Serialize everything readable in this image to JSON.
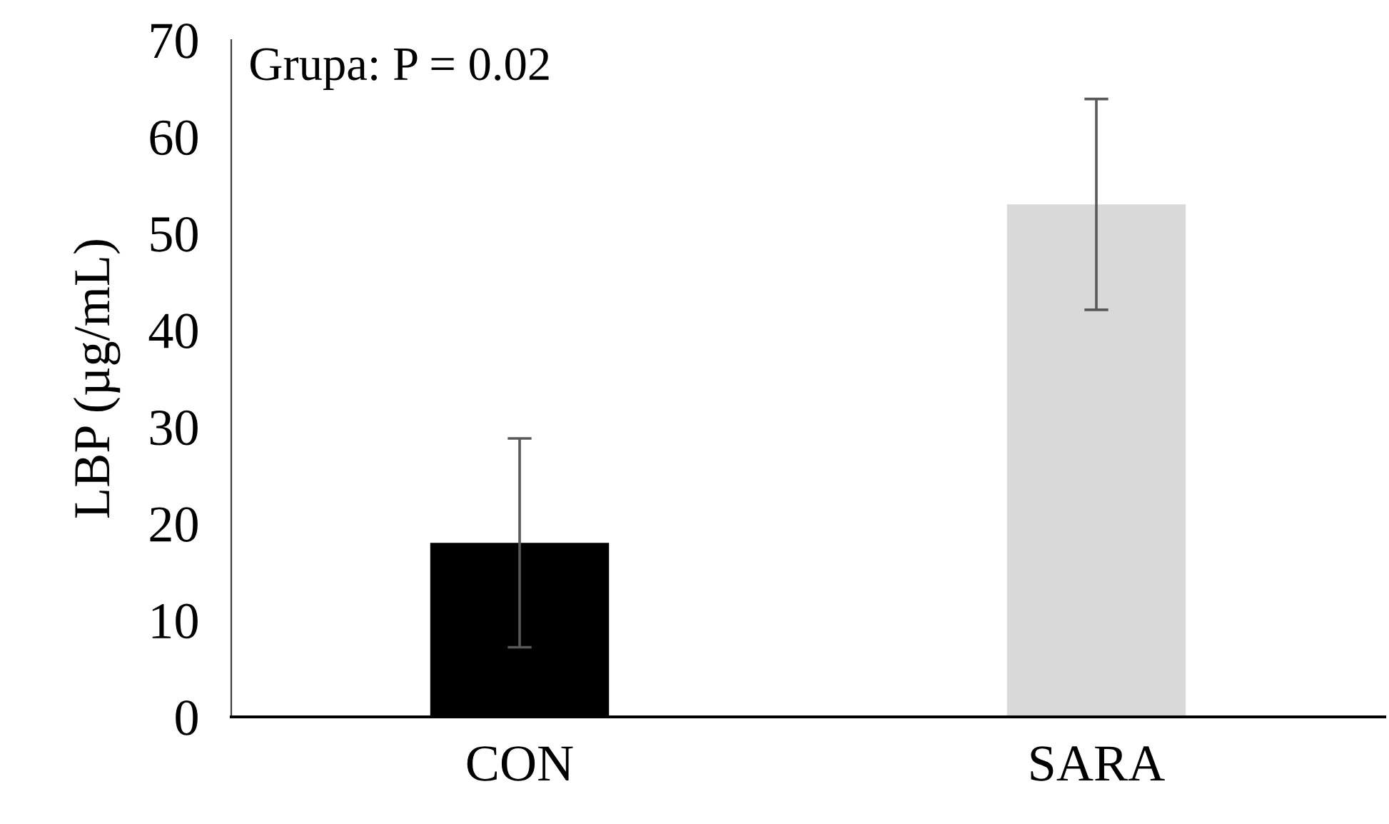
{
  "chart_data": {
    "type": "bar",
    "ylabel": "LBP (µg/mL)",
    "categories": [
      "CON",
      "SARA"
    ],
    "values": [
      18,
      53
    ],
    "colors": [
      "#000000",
      "#d9d9d9"
    ],
    "errors": [
      10.8,
      10.9
    ],
    "ylim": [
      0,
      70
    ],
    "yticks": [
      0,
      10,
      20,
      30,
      40,
      50,
      60,
      70
    ],
    "grid": false,
    "legend": false,
    "annotations": [
      "Grupa: P = 0.02"
    ]
  }
}
